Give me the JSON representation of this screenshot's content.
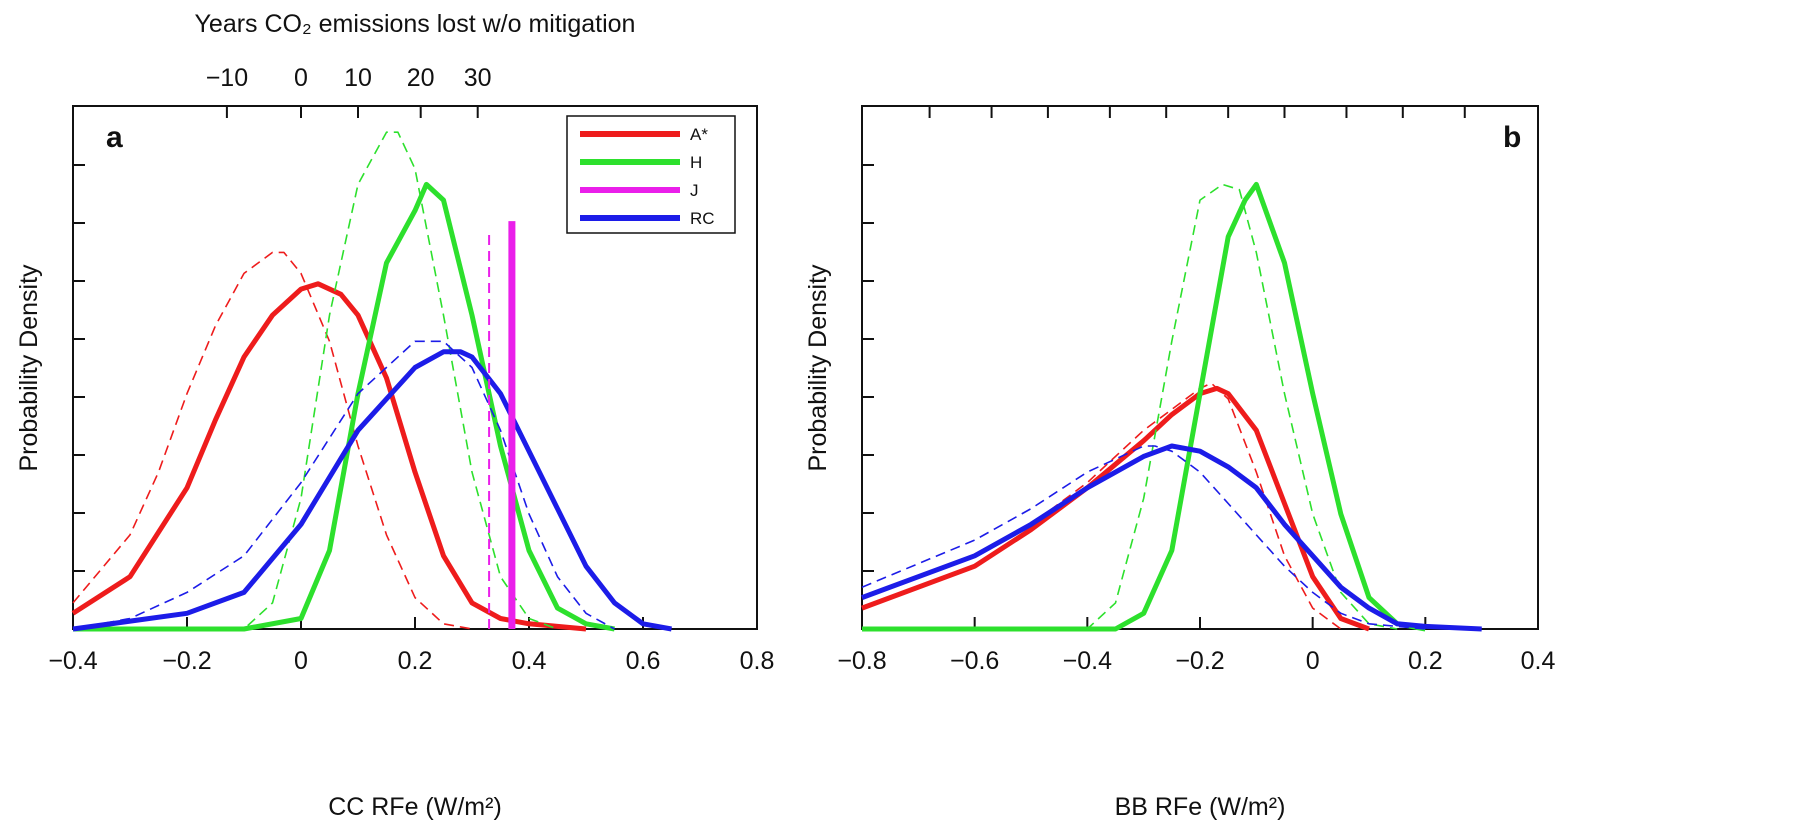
{
  "chart_data": [
    {
      "panel": "a",
      "type": "line",
      "xlabel": "CC RFe (W/m²)",
      "ylabel": "Probability Density",
      "top_xlabel": "Years CO₂ emissions lost w/o mitigation",
      "xlim": [
        -0.4,
        0.8
      ],
      "ylim": [
        0,
        1
      ],
      "xticks": [
        "-0.4",
        "-0.2",
        "0",
        "0.2",
        "0.4",
        "0.6",
        "0.8"
      ],
      "top_xticks": [
        "-10",
        "0",
        "10",
        "20",
        "30"
      ],
      "top_tick_positions": [
        -0.13,
        0.0,
        0.1,
        0.21,
        0.31
      ],
      "colors": {
        "A*": "#ee1c1c",
        "H": "#2de02d",
        "J": "#ea1fea",
        "RC": "#1c1ce8"
      },
      "legend": [
        "A*",
        "H",
        "J",
        "RC"
      ],
      "legend_position": "top-right",
      "series": [
        {
          "name": "A*",
          "style": "solid-thick",
          "x": [
            -0.4,
            -0.3,
            -0.2,
            -0.15,
            -0.1,
            -0.05,
            0,
            0.03,
            0.07,
            0.1,
            0.15,
            0.2,
            0.25,
            0.3,
            0.35,
            0.4,
            0.5
          ],
          "y": [
            0.03,
            0.1,
            0.27,
            0.4,
            0.52,
            0.6,
            0.65,
            0.66,
            0.64,
            0.6,
            0.48,
            0.3,
            0.14,
            0.05,
            0.02,
            0.01,
            0
          ]
        },
        {
          "name": "A*",
          "style": "dashed",
          "x": [
            -0.4,
            -0.3,
            -0.25,
            -0.2,
            -0.15,
            -0.1,
            -0.05,
            -0.03,
            0,
            0.05,
            0.1,
            0.15,
            0.2,
            0.25,
            0.3
          ],
          "y": [
            0.05,
            0.18,
            0.3,
            0.45,
            0.58,
            0.68,
            0.72,
            0.72,
            0.68,
            0.55,
            0.35,
            0.18,
            0.06,
            0.01,
            0
          ]
        },
        {
          "name": "H",
          "style": "solid-thick",
          "x": [
            -0.4,
            -0.1,
            0,
            0.05,
            0.1,
            0.15,
            0.2,
            0.22,
            0.25,
            0.3,
            0.35,
            0.4,
            0.45,
            0.5,
            0.55
          ],
          "y": [
            0,
            0,
            0.02,
            0.15,
            0.45,
            0.7,
            0.8,
            0.85,
            0.82,
            0.6,
            0.35,
            0.15,
            0.04,
            0.01,
            0
          ]
        },
        {
          "name": "H",
          "style": "dashed",
          "x": [
            -0.4,
            -0.1,
            -0.05,
            0,
            0.05,
            0.1,
            0.15,
            0.17,
            0.2,
            0.25,
            0.3,
            0.35,
            0.4,
            0.45
          ],
          "y": [
            0,
            0,
            0.05,
            0.25,
            0.6,
            0.85,
            0.95,
            0.95,
            0.88,
            0.6,
            0.3,
            0.1,
            0.02,
            0
          ]
        },
        {
          "name": "RC",
          "style": "solid-thick",
          "x": [
            -0.4,
            -0.2,
            -0.1,
            0,
            0.1,
            0.2,
            0.25,
            0.28,
            0.3,
            0.35,
            0.4,
            0.45,
            0.5,
            0.55,
            0.6,
            0.65
          ],
          "y": [
            0,
            0.03,
            0.07,
            0.2,
            0.38,
            0.5,
            0.53,
            0.53,
            0.52,
            0.45,
            0.34,
            0.23,
            0.12,
            0.05,
            0.01,
            0
          ]
        },
        {
          "name": "RC",
          "style": "dashed",
          "x": [
            -0.4,
            -0.3,
            -0.2,
            -0.1,
            0,
            0.1,
            0.2,
            0.25,
            0.3,
            0.35,
            0.4,
            0.45,
            0.5,
            0.55
          ],
          "y": [
            0,
            0.02,
            0.07,
            0.14,
            0.28,
            0.45,
            0.55,
            0.55,
            0.5,
            0.38,
            0.22,
            0.1,
            0.03,
            0
          ]
        },
        {
          "name": "J",
          "style": "vline-thick",
          "x": [
            0.37,
            0.37
          ],
          "y": [
            0,
            0.78
          ]
        },
        {
          "name": "J",
          "style": "vline-dashed",
          "x": [
            0.33,
            0.33
          ],
          "y": [
            0,
            0.76
          ]
        }
      ]
    },
    {
      "panel": "b",
      "type": "line",
      "xlabel": "BB RFe (W/m²)",
      "ylabel": "Probability Density",
      "xlim": [
        -0.8,
        0.4
      ],
      "ylim": [
        0,
        1
      ],
      "xticks": [
        "-0.8",
        "-0.6",
        "-0.4",
        "-0.2",
        "0",
        "0.2",
        "0.4"
      ],
      "top_tick_positions": [
        -0.68,
        -0.57,
        -0.47,
        -0.36,
        -0.26,
        -0.15,
        -0.05,
        0.06,
        0.16,
        0.27
      ],
      "series": [
        {
          "name": "A*",
          "style": "solid-thick",
          "x": [
            -0.8,
            -0.6,
            -0.5,
            -0.4,
            -0.3,
            -0.25,
            -0.2,
            -0.17,
            -0.15,
            -0.1,
            -0.05,
            0,
            0.05,
            0.1
          ],
          "y": [
            0.04,
            0.12,
            0.19,
            0.27,
            0.36,
            0.41,
            0.45,
            0.46,
            0.45,
            0.38,
            0.24,
            0.1,
            0.02,
            0
          ]
        },
        {
          "name": "A*",
          "style": "dashed",
          "x": [
            -0.8,
            -0.6,
            -0.5,
            -0.4,
            -0.3,
            -0.2,
            -0.18,
            -0.15,
            -0.1,
            -0.05,
            0,
            0.05
          ],
          "y": [
            0.06,
            0.14,
            0.2,
            0.28,
            0.38,
            0.46,
            0.47,
            0.44,
            0.3,
            0.14,
            0.04,
            0
          ]
        },
        {
          "name": "H",
          "style": "solid-thick",
          "x": [
            -0.8,
            -0.35,
            -0.3,
            -0.25,
            -0.2,
            -0.15,
            -0.12,
            -0.1,
            -0.05,
            0,
            0.05,
            0.1,
            0.15,
            0.2
          ],
          "y": [
            0,
            0,
            0.03,
            0.15,
            0.45,
            0.75,
            0.82,
            0.85,
            0.7,
            0.45,
            0.22,
            0.06,
            0.01,
            0
          ]
        },
        {
          "name": "H",
          "style": "dashed",
          "x": [
            -0.8,
            -0.4,
            -0.35,
            -0.3,
            -0.25,
            -0.2,
            -0.16,
            -0.13,
            -0.1,
            -0.05,
            0,
            0.05,
            0.1,
            0.15
          ],
          "y": [
            0,
            0,
            0.05,
            0.25,
            0.55,
            0.82,
            0.85,
            0.84,
            0.72,
            0.45,
            0.22,
            0.07,
            0.01,
            0
          ]
        },
        {
          "name": "RC",
          "style": "solid-thick",
          "x": [
            -0.8,
            -0.6,
            -0.5,
            -0.4,
            -0.3,
            -0.25,
            -0.2,
            -0.15,
            -0.1,
            -0.05,
            0,
            0.05,
            0.1,
            0.15,
            0.2,
            0.3
          ],
          "y": [
            0.06,
            0.14,
            0.2,
            0.27,
            0.33,
            0.35,
            0.34,
            0.31,
            0.27,
            0.2,
            0.14,
            0.08,
            0.04,
            0.01,
            0.005,
            0
          ]
        },
        {
          "name": "RC",
          "style": "dashed",
          "x": [
            -0.8,
            -0.6,
            -0.5,
            -0.4,
            -0.3,
            -0.28,
            -0.25,
            -0.2,
            -0.15,
            -0.1,
            -0.05,
            0,
            0.05,
            0.1,
            0.2
          ],
          "y": [
            0.08,
            0.17,
            0.23,
            0.3,
            0.35,
            0.35,
            0.34,
            0.3,
            0.24,
            0.18,
            0.12,
            0.07,
            0.03,
            0.01,
            0
          ]
        }
      ]
    }
  ]
}
